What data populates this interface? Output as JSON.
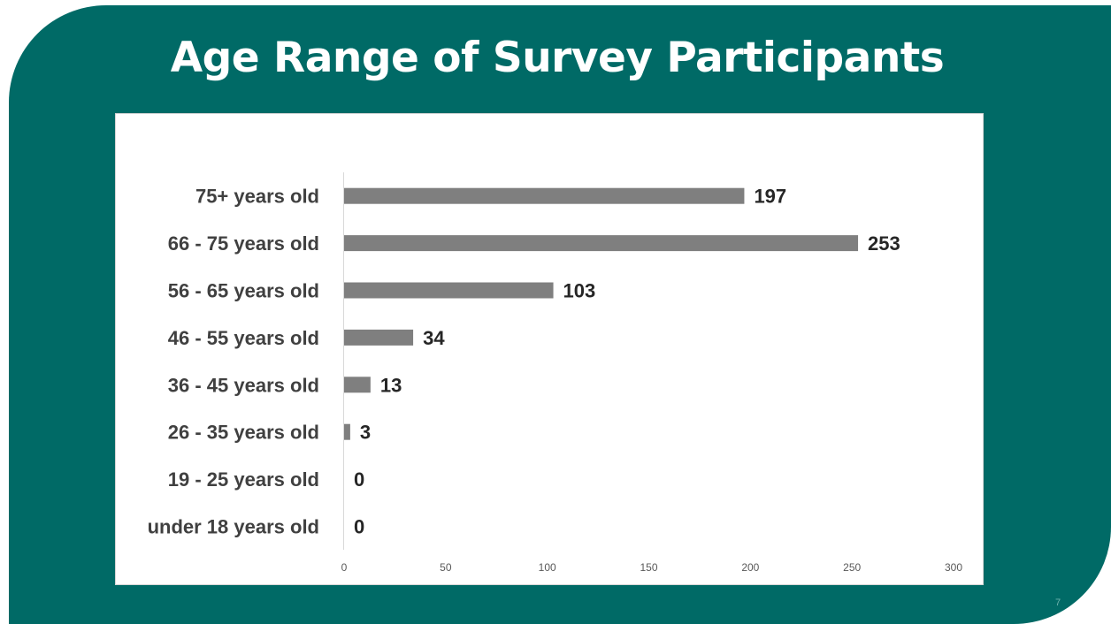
{
  "slide": {
    "title": "Age Range of Survey Participants",
    "page_number": "7",
    "background_color": "#006a66"
  },
  "chart_data": {
    "type": "bar",
    "orientation": "horizontal",
    "title": "",
    "xlabel": "",
    "ylabel": "",
    "categories": [
      "75+ years old",
      "66 - 75 years old",
      "56 - 65 years old",
      "46 - 55 years old",
      "36 - 45 years old",
      "26 - 35 years old",
      "19 -  25 years old",
      "under 18 years old"
    ],
    "values": [
      197,
      253,
      103,
      34,
      13,
      3,
      0,
      0
    ],
    "value_labels": [
      "197",
      "253",
      "103",
      "34",
      "13",
      "3",
      "0",
      "0"
    ],
    "xlim": [
      0,
      300
    ],
    "x_ticks": [
      0,
      50,
      100,
      150,
      200,
      250,
      300
    ],
    "x_tick_labels": [
      "0",
      "50",
      "100",
      "150",
      "200",
      "250",
      "300"
    ],
    "bar_color": "#7f7f7f",
    "grid": false,
    "legend": "none"
  }
}
